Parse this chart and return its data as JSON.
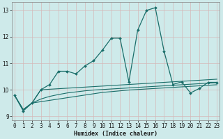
{
  "xlabel": "Humidex (Indice chaleur)",
  "bg_color": "#ceeaea",
  "grid_color": "#b8d8d8",
  "line_color": "#1a6e6a",
  "x_values": [
    0,
    1,
    2,
    3,
    4,
    5,
    6,
    7,
    8,
    9,
    10,
    11,
    12,
    13,
    14,
    15,
    16,
    17,
    18,
    19,
    20,
    21,
    22,
    23
  ],
  "series1": [
    9.8,
    9.2,
    9.5,
    10.0,
    10.2,
    10.7,
    10.7,
    10.6,
    10.9,
    11.1,
    11.5,
    11.95,
    11.95,
    10.3,
    12.25,
    13.0,
    13.1,
    11.45,
    10.2,
    10.3,
    9.88,
    10.05,
    10.28,
    10.28
  ],
  "series2": [
    9.8,
    9.25,
    9.5,
    10.0,
    10.02,
    10.04,
    10.06,
    10.08,
    10.1,
    10.12,
    10.14,
    10.16,
    10.18,
    10.2,
    10.22,
    10.24,
    10.26,
    10.28,
    10.3,
    10.32,
    10.34,
    10.36,
    10.38,
    10.4
  ],
  "series3": [
    9.8,
    9.25,
    9.5,
    9.65,
    9.75,
    9.82,
    9.88,
    9.92,
    9.96,
    9.99,
    10.01,
    10.03,
    10.05,
    10.07,
    10.09,
    10.11,
    10.13,
    10.15,
    10.17,
    10.19,
    10.21,
    10.23,
    10.25,
    10.27
  ],
  "series4": [
    9.8,
    9.25,
    9.5,
    9.55,
    9.6,
    9.65,
    9.7,
    9.75,
    9.8,
    9.85,
    9.9,
    9.93,
    9.96,
    9.99,
    10.01,
    10.03,
    10.05,
    10.07,
    10.09,
    10.11,
    10.13,
    10.15,
    10.17,
    10.19
  ],
  "ylim": [
    8.85,
    13.3
  ],
  "xlim": [
    -0.3,
    23.3
  ],
  "yticks": [
    9,
    10,
    11,
    12,
    13
  ],
  "xticks": [
    0,
    1,
    2,
    3,
    4,
    5,
    6,
    7,
    8,
    9,
    10,
    11,
    12,
    13,
    14,
    15,
    16,
    17,
    18,
    19,
    20,
    21,
    22,
    23
  ]
}
